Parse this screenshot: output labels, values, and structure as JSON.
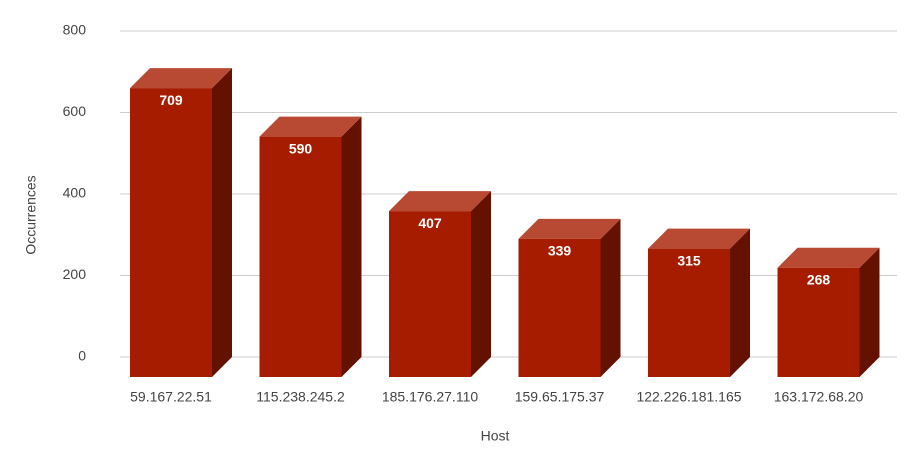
{
  "chart_data": {
    "type": "bar3d",
    "x_label": "Host",
    "y_label": "Occurrences",
    "categories": [
      "59.167.22.51",
      "115.238.245.2",
      "185.176.27.110",
      "159.65.175.37",
      "122.226.181.165",
      "163.172.68.20"
    ],
    "values": [
      709,
      590,
      407,
      339,
      315,
      268
    ],
    "color": "#a61c00",
    "ylim": [
      0,
      800
    ],
    "yticks": [
      0,
      200,
      400,
      600,
      800
    ],
    "grid": true
  }
}
